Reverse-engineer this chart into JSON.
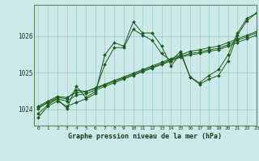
{
  "title": "Graphe pression niveau de la mer (hPa)",
  "background_color": "#cce8e8",
  "grid_color": "#99cccc",
  "line_color": "#1a5c1a",
  "xlim": [
    -0.5,
    23
  ],
  "ylim": [
    1023.55,
    1026.85
  ],
  "yticks": [
    1024,
    1025,
    1026
  ],
  "xticks": [
    0,
    1,
    2,
    3,
    4,
    5,
    6,
    7,
    8,
    9,
    10,
    11,
    12,
    13,
    14,
    15,
    16,
    17,
    18,
    19,
    20,
    21,
    22,
    23
  ],
  "series": [
    [
      1023.78,
      1024.08,
      1024.22,
      1024.08,
      1024.18,
      1024.28,
      1024.42,
      1025.48,
      1025.82,
      1025.72,
      1026.38,
      1026.08,
      1026.08,
      1025.72,
      1025.18,
      1025.52,
      1024.88,
      1024.68,
      1024.82,
      1024.92,
      1025.32,
      1026.02,
      1026.42,
      1026.62
    ],
    [
      1023.88,
      1024.12,
      1024.28,
      1024.02,
      1024.62,
      1024.32,
      1024.48,
      1025.22,
      1025.68,
      1025.68,
      1026.18,
      1026.02,
      1025.88,
      1025.52,
      1025.32,
      1025.58,
      1024.88,
      1024.72,
      1024.92,
      1025.08,
      1025.48,
      1026.08,
      1026.48,
      1026.62
    ],
    [
      1024.02,
      1024.18,
      1024.32,
      1024.28,
      1024.52,
      1024.48,
      1024.58,
      1024.68,
      1024.78,
      1024.88,
      1024.98,
      1025.08,
      1025.18,
      1025.28,
      1025.38,
      1025.48,
      1025.58,
      1025.62,
      1025.68,
      1025.72,
      1025.82,
      1025.92,
      1026.02,
      1026.12
    ],
    [
      1024.05,
      1024.18,
      1024.28,
      1024.22,
      1024.38,
      1024.42,
      1024.52,
      1024.62,
      1024.72,
      1024.82,
      1024.92,
      1025.02,
      1025.12,
      1025.22,
      1025.32,
      1025.42,
      1025.48,
      1025.52,
      1025.58,
      1025.62,
      1025.72,
      1025.82,
      1025.92,
      1026.02
    ],
    [
      1024.08,
      1024.22,
      1024.35,
      1024.32,
      1024.45,
      1024.48,
      1024.56,
      1024.66,
      1024.76,
      1024.85,
      1024.95,
      1025.05,
      1025.15,
      1025.24,
      1025.35,
      1025.44,
      1025.52,
      1025.56,
      1025.62,
      1025.66,
      1025.76,
      1025.88,
      1025.98,
      1026.08
    ]
  ]
}
